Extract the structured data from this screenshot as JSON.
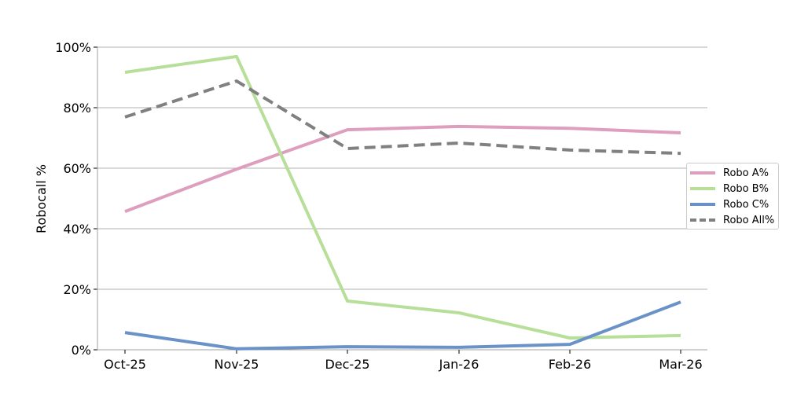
{
  "chart_data": {
    "type": "line",
    "title": "",
    "xlabel": "",
    "ylabel": "Robocall %",
    "categories": [
      "Oct-25",
      "Nov-25",
      "Dec-25",
      "Jan-26",
      "Feb-26",
      "Mar-26"
    ],
    "yticks": [
      "0%",
      "20%",
      "40%",
      "60%",
      "80%",
      "100%"
    ],
    "ylim": [
      0,
      100
    ],
    "grid": "horizontal",
    "legend_position": "right",
    "series": [
      {
        "name": "Robo A%",
        "color": "#de9ebd",
        "dash": "solid",
        "values": [
          45.7,
          59.7,
          72.7,
          73.8,
          73.2,
          71.7
        ]
      },
      {
        "name": "Robo B%",
        "color": "#b8df9a",
        "dash": "solid",
        "values": [
          91.7,
          96.9,
          16.1,
          12.2,
          3.9,
          4.7
        ]
      },
      {
        "name": "Robo C%",
        "color": "#6992c8",
        "dash": "solid",
        "values": [
          5.7,
          0.3,
          1.0,
          0.8,
          1.8,
          15.8
        ]
      },
      {
        "name": "Robo All%",
        "color": "#808080",
        "dash": "dashed",
        "values": [
          76.9,
          88.8,
          66.5,
          68.3,
          66.0,
          64.9
        ]
      }
    ]
  },
  "legend": {
    "items": [
      {
        "label": "Robo A%"
      },
      {
        "label": "Robo B%"
      },
      {
        "label": "Robo C%"
      },
      {
        "label": "Robo All%"
      }
    ]
  }
}
